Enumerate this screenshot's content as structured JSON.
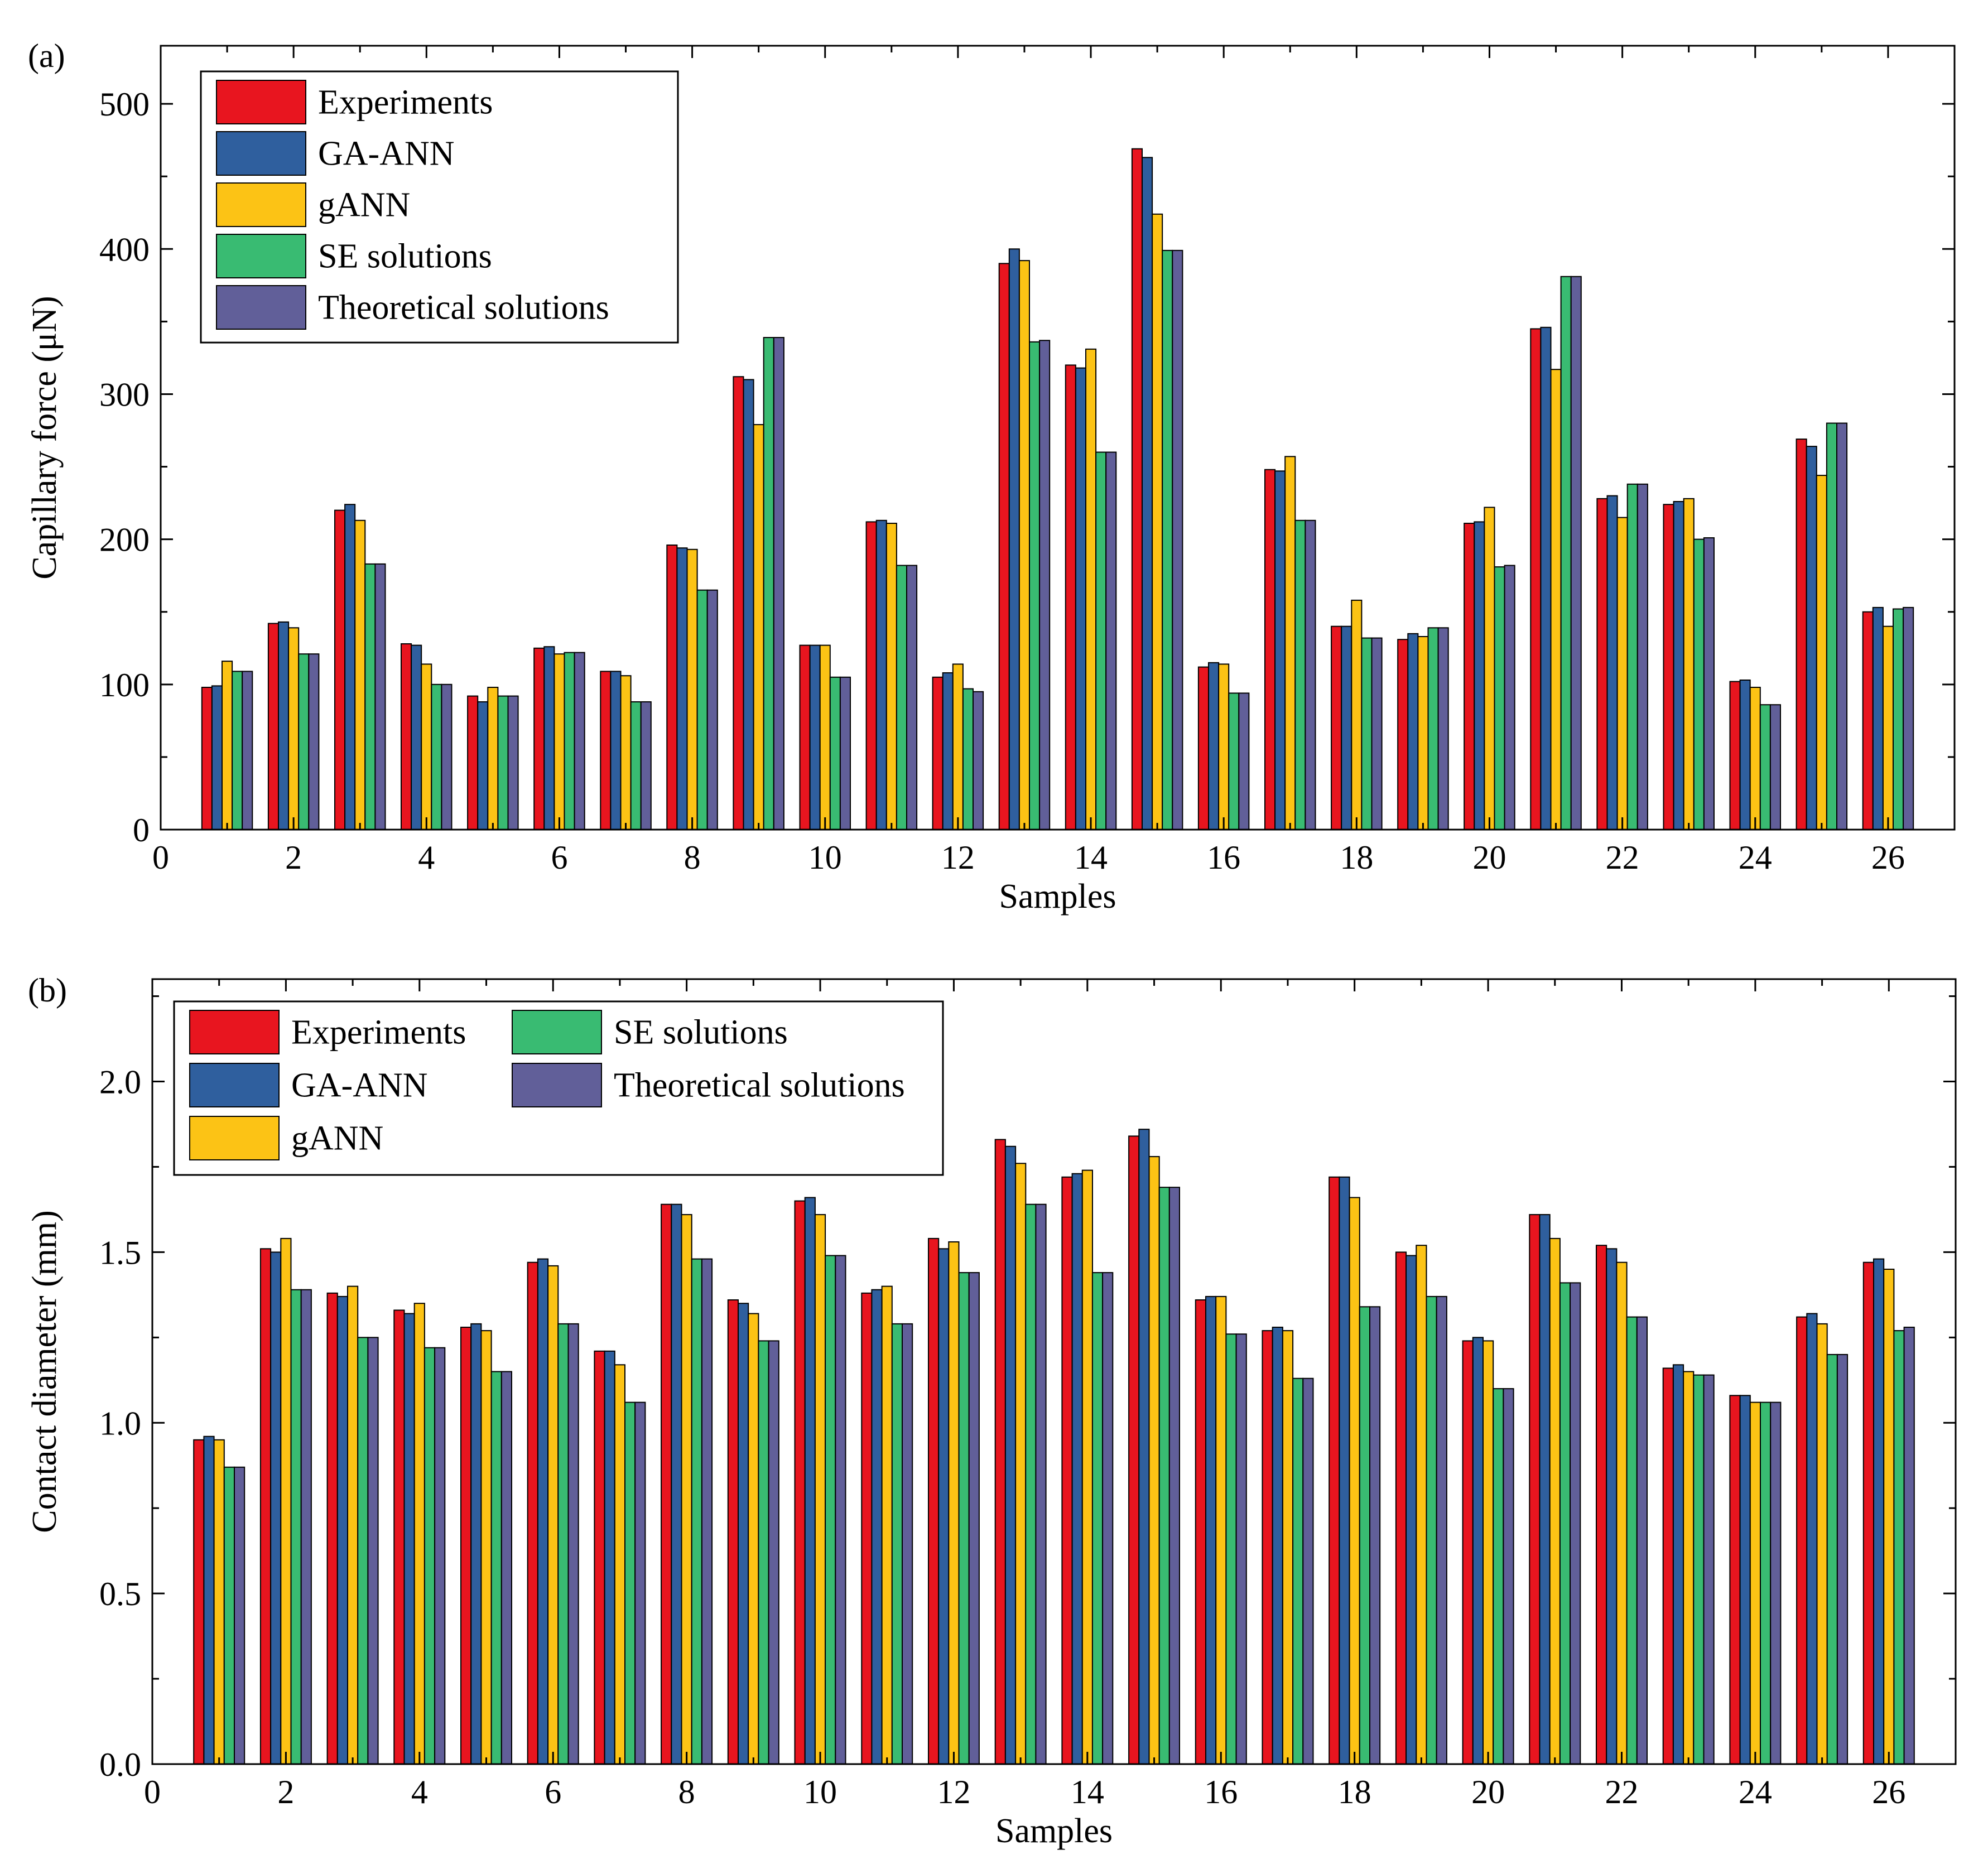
{
  "chart_data": [
    {
      "panel": "(a)",
      "type": "bar",
      "xlabel": "Samples",
      "ylabel": "Capillary force (μN)",
      "xlim": [
        0,
        27
      ],
      "ylim": [
        0,
        540
      ],
      "xticks": [
        0,
        2,
        4,
        6,
        8,
        10,
        12,
        14,
        16,
        18,
        20,
        22,
        24,
        26
      ],
      "yticks": [
        0,
        100,
        200,
        300,
        400,
        500
      ],
      "ytick_labels": [
        "0",
        "100",
        "200",
        "300",
        "400",
        "500"
      ],
      "legend_position": "top-left",
      "legend_columns": 1,
      "categories": [
        1,
        2,
        3,
        4,
        5,
        6,
        7,
        8,
        9,
        10,
        11,
        12,
        13,
        14,
        15,
        16,
        17,
        18,
        19,
        20,
        21,
        22,
        23,
        24,
        25,
        26
      ],
      "series": [
        {
          "name": "Experiments",
          "color": "#e8151f",
          "values": [
            98,
            142,
            220,
            128,
            92,
            125,
            109,
            196,
            312,
            127,
            212,
            105,
            390,
            320,
            469,
            112,
            248,
            140,
            131,
            211,
            345,
            228,
            224,
            102,
            269,
            150
          ]
        },
        {
          "name": "GA-ANN",
          "color": "#2f5f9e",
          "values": [
            99,
            143,
            224,
            127,
            88,
            126,
            109,
            194,
            310,
            127,
            213,
            108,
            400,
            318,
            463,
            115,
            247,
            140,
            135,
            212,
            346,
            230,
            226,
            103,
            264,
            153
          ]
        },
        {
          "name": "gANN",
          "color": "#fcc315",
          "values": [
            116,
            139,
            213,
            114,
            98,
            121,
            106,
            193,
            279,
            127,
            211,
            114,
            392,
            331,
            424,
            114,
            257,
            158,
            133,
            222,
            317,
            215,
            228,
            98,
            244,
            140
          ]
        },
        {
          "name": "SE solutions",
          "color": "#39bb72",
          "values": [
            109,
            121,
            183,
            100,
            92,
            122,
            88,
            165,
            339,
            105,
            182,
            97,
            336,
            260,
            399,
            94,
            213,
            132,
            139,
            181,
            381,
            238,
            200,
            86,
            280,
            152
          ]
        },
        {
          "name": "Theoretical solutions",
          "color": "#615f99",
          "values": [
            109,
            121,
            183,
            100,
            92,
            122,
            88,
            165,
            339,
            105,
            182,
            95,
            337,
            260,
            399,
            94,
            213,
            132,
            139,
            182,
            381,
            238,
            201,
            86,
            280,
            153
          ]
        }
      ]
    },
    {
      "panel": "(b)",
      "type": "bar",
      "xlabel": "Samples",
      "ylabel": "Contact diameter (mm)",
      "xlim": [
        0,
        27
      ],
      "ylim": [
        0,
        2.3
      ],
      "xticks": [
        0,
        2,
        4,
        6,
        8,
        10,
        12,
        14,
        16,
        18,
        20,
        22,
        24,
        26
      ],
      "yticks": [
        0,
        0.5,
        1.0,
        1.5,
        2.0
      ],
      "ytick_labels": [
        "0.0",
        "0.5",
        "1.0",
        "1.5",
        "2.0"
      ],
      "legend_position": "top-left",
      "legend_columns": 2,
      "categories": [
        1,
        2,
        3,
        4,
        5,
        6,
        7,
        8,
        9,
        10,
        11,
        12,
        13,
        14,
        15,
        16,
        17,
        18,
        19,
        20,
        21,
        22,
        23,
        24,
        25,
        26
      ],
      "series": [
        {
          "name": "Experiments",
          "color": "#e8151f",
          "values": [
            0.95,
            1.51,
            1.38,
            1.33,
            1.28,
            1.47,
            1.21,
            1.64,
            1.36,
            1.65,
            1.38,
            1.54,
            1.83,
            1.72,
            1.84,
            1.36,
            1.27,
            1.72,
            1.5,
            1.24,
            1.61,
            1.52,
            1.16,
            1.08,
            1.31,
            1.47
          ]
        },
        {
          "name": "GA-ANN",
          "color": "#2f5f9e",
          "values": [
            0.96,
            1.5,
            1.37,
            1.32,
            1.29,
            1.48,
            1.21,
            1.64,
            1.35,
            1.66,
            1.39,
            1.51,
            1.81,
            1.73,
            1.86,
            1.37,
            1.28,
            1.72,
            1.49,
            1.25,
            1.61,
            1.51,
            1.17,
            1.08,
            1.32,
            1.48
          ]
        },
        {
          "name": "gANN",
          "color": "#fcc315",
          "values": [
            0.95,
            1.54,
            1.4,
            1.35,
            1.27,
            1.46,
            1.17,
            1.61,
            1.32,
            1.61,
            1.4,
            1.53,
            1.76,
            1.74,
            1.78,
            1.37,
            1.27,
            1.66,
            1.52,
            1.24,
            1.54,
            1.47,
            1.15,
            1.06,
            1.29,
            1.45
          ]
        },
        {
          "name": "SE solutions",
          "color": "#39bb72",
          "values": [
            0.87,
            1.39,
            1.25,
            1.22,
            1.15,
            1.29,
            1.06,
            1.48,
            1.24,
            1.49,
            1.29,
            1.44,
            1.64,
            1.44,
            1.69,
            1.26,
            1.13,
            1.34,
            1.37,
            1.1,
            1.41,
            1.31,
            1.14,
            1.06,
            1.2,
            1.27
          ]
        },
        {
          "name": "Theoretical solutions",
          "color": "#615f99",
          "values": [
            0.87,
            1.39,
            1.25,
            1.22,
            1.15,
            1.29,
            1.06,
            1.48,
            1.24,
            1.49,
            1.29,
            1.44,
            1.64,
            1.44,
            1.69,
            1.26,
            1.13,
            1.34,
            1.37,
            1.1,
            1.41,
            1.31,
            1.14,
            1.06,
            1.2,
            1.28
          ]
        }
      ]
    }
  ]
}
